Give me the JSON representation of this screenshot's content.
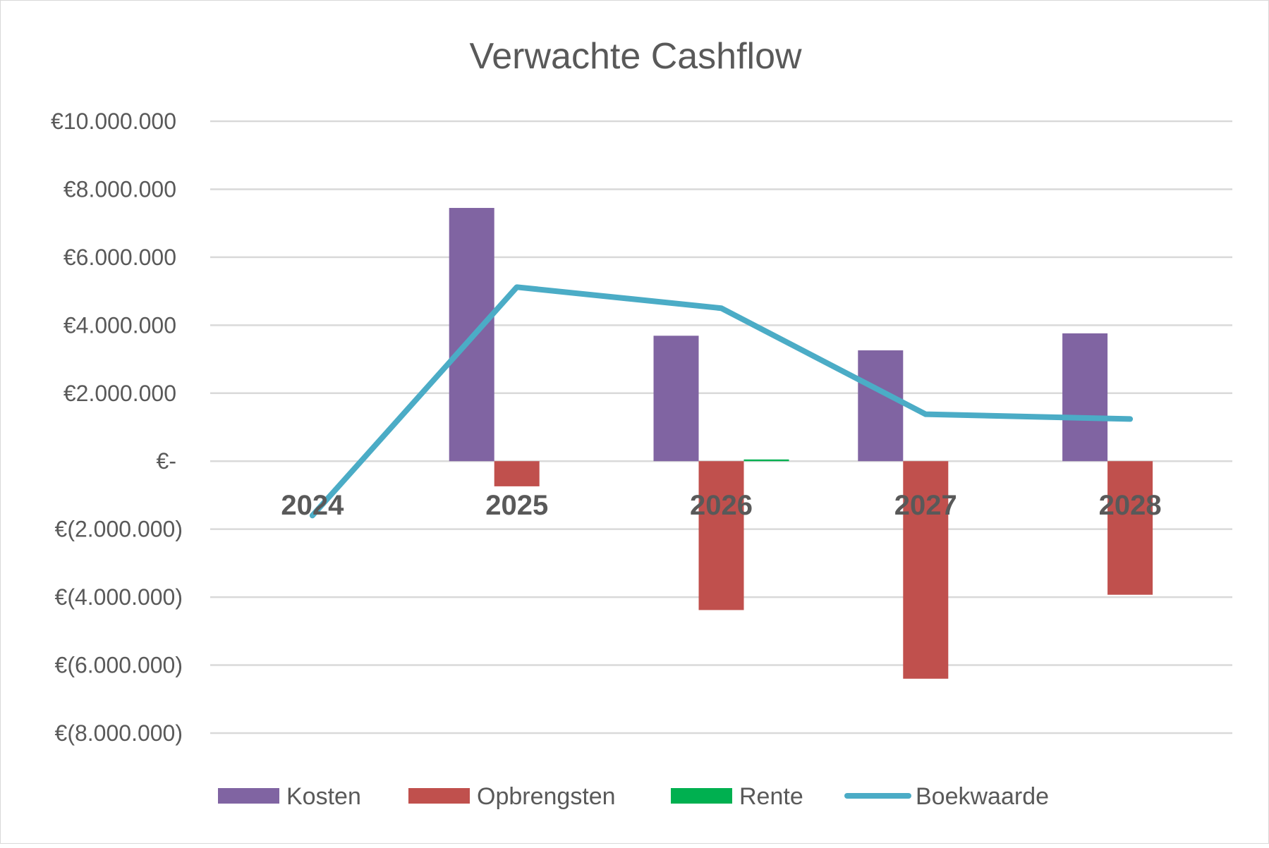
{
  "chart_data": {
    "type": "bar",
    "title": "Verwachte Cashflow",
    "xlabel": "",
    "ylabel": "",
    "categories": [
      "2024",
      "2025",
      "2026",
      "2027",
      "2028"
    ],
    "ylim": [
      -8000000,
      10000000
    ],
    "ytick_values": [
      10000000,
      8000000,
      6000000,
      4000000,
      2000000,
      0,
      -2000000,
      -4000000,
      -6000000,
      -8000000
    ],
    "ytick_labels": [
      "€10.000.000",
      "€8.000.000",
      "€6.000.000",
      "€4.000.000",
      "€2.000.000",
      "€-",
      "€(2.000.000)",
      "€(4.000.000)",
      "€(6.000.000)",
      "€(8.000.000)"
    ],
    "grid": true,
    "legend_position": "bottom",
    "series": [
      {
        "name": "Kosten",
        "kind": "bar",
        "color": "#8064a2",
        "values": [
          0,
          7450000,
          3690000,
          3260000,
          3760000
        ]
      },
      {
        "name": "Opbrengsten",
        "kind": "bar",
        "color": "#c0504d",
        "values": [
          0,
          -740000,
          -4380000,
          -6400000,
          -3930000
        ]
      },
      {
        "name": "Rente",
        "kind": "bar",
        "color": "#00b050",
        "values": [
          0,
          0,
          50000,
          0,
          0
        ]
      },
      {
        "name": "Boekwaarde",
        "kind": "line",
        "color": "#4bacc6",
        "values": [
          -1600000,
          5120000,
          4500000,
          1380000,
          1240000
        ]
      }
    ]
  }
}
